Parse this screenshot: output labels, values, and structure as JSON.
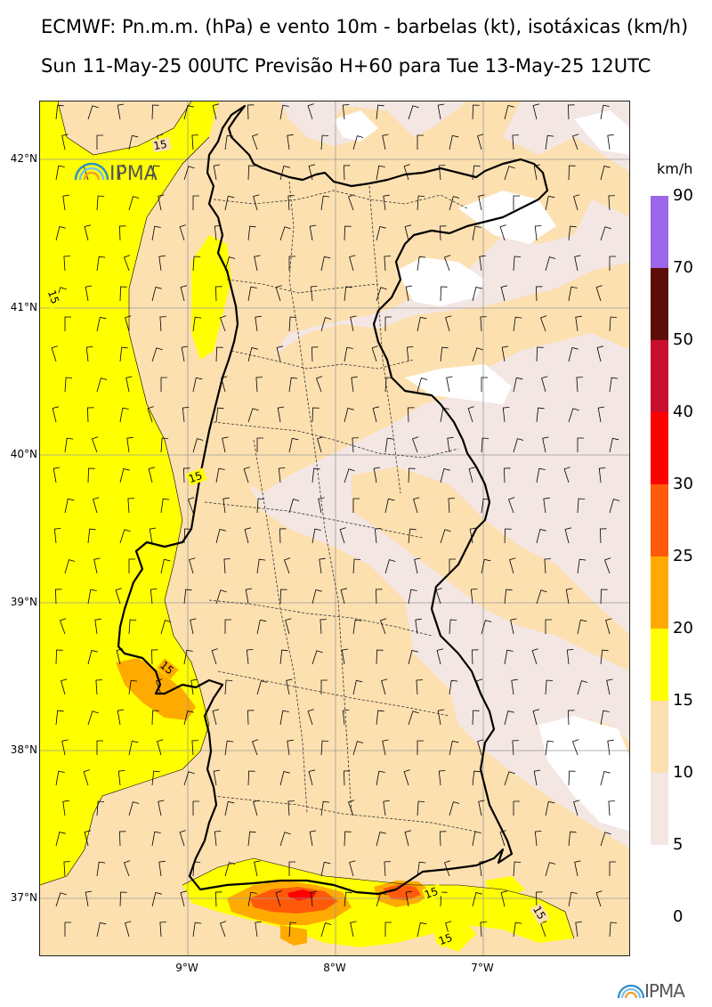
{
  "title_line1": "ECMWF: Pn.m.m. (hPa) e vento 10m - barbelas (kt), isotáxicas (km/h)",
  "title_line2": "Sun 11-May-25 00UTC Previsão H+60 para Tue 13-May-25 12UTC",
  "map": {
    "latitude_labels": [
      "42°N",
      "41°N",
      "40°N",
      "39°N",
      "38°N",
      "37°N"
    ],
    "longitude_labels": [
      "9°W",
      "8°W",
      "7°W"
    ],
    "isotach_labels": [
      "15",
      "15",
      "15",
      "15",
      "15",
      "15",
      "15"
    ],
    "logo_text": "IPMA"
  },
  "legend": {
    "unit": "km/h",
    "levels": [
      "90",
      "70",
      "50",
      "40",
      "30",
      "25",
      "20",
      "15",
      "10",
      "5",
      "0"
    ],
    "colors": [
      "#9b66e8",
      "#5c0e06",
      "#c8102e",
      "#ff0000",
      "#ff5a0a",
      "#ffaa00",
      "#ffff00",
      "#fde0b0",
      "#f3e6e3"
    ]
  },
  "footer_logo_text": "IPMA",
  "colors": {
    "yellow": "#ffff00",
    "light_orange": "#fde0b0",
    "pale_pink": "#f3e6e3",
    "orange": "#ffaa00",
    "dark_orange": "#ff5a0a",
    "red": "#ff0000"
  }
}
